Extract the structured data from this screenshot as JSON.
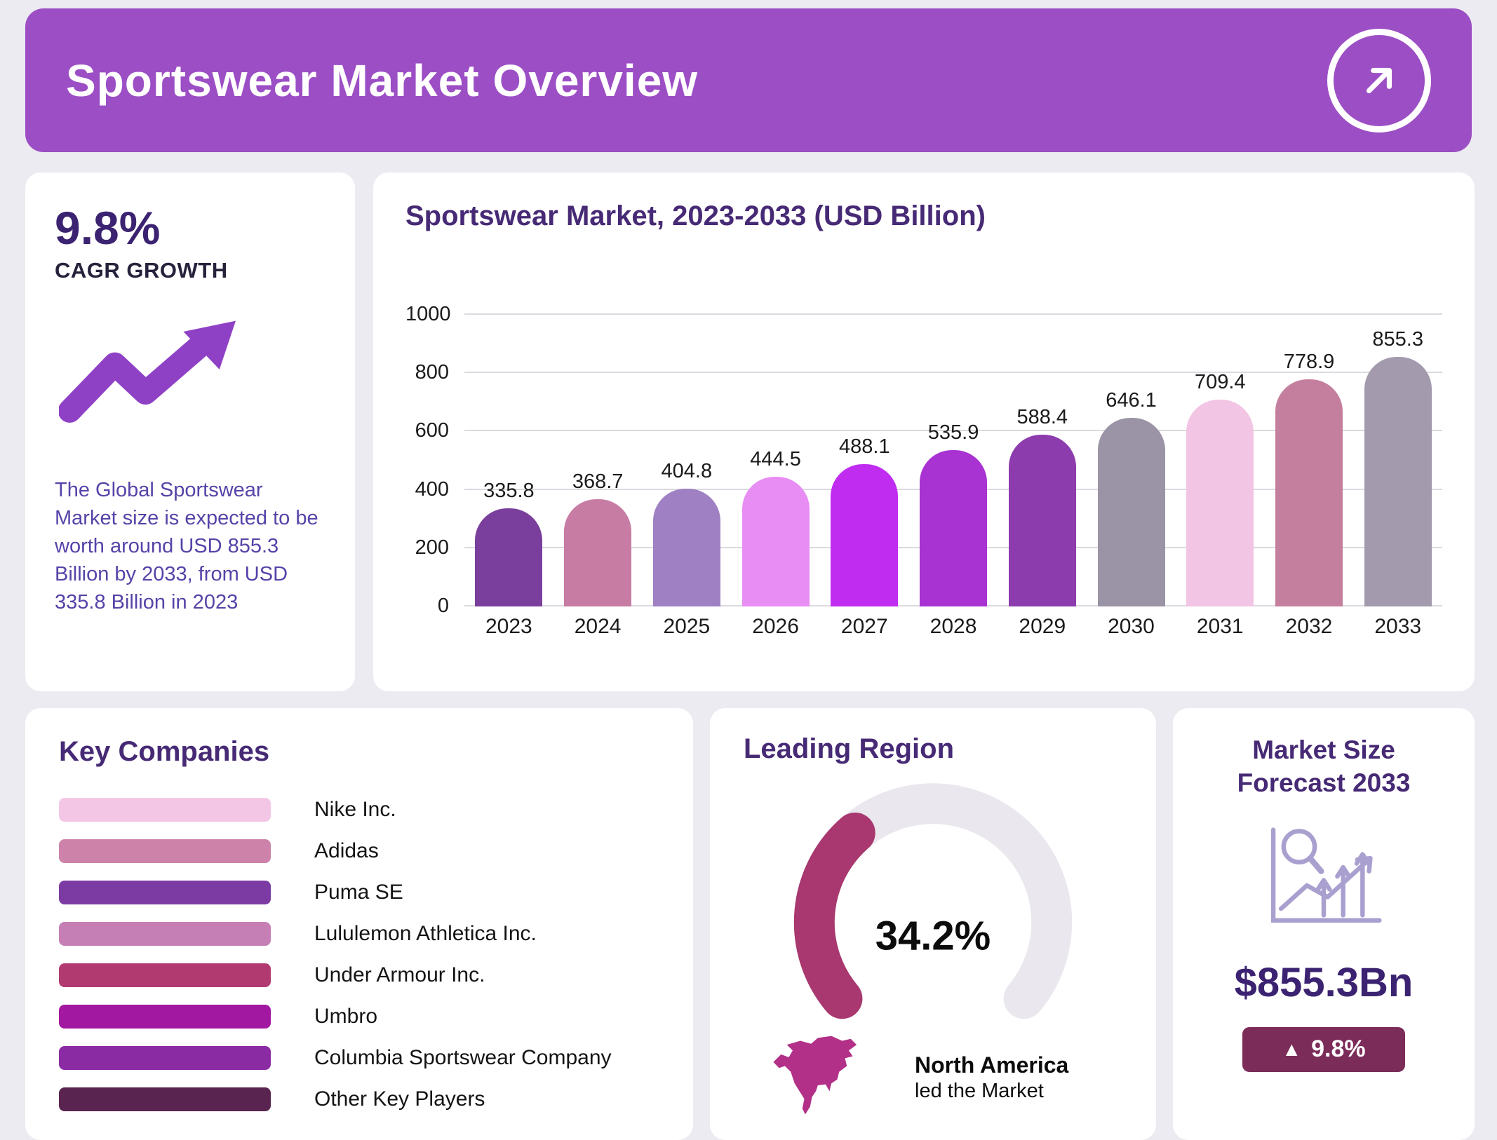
{
  "theme": {
    "background": "#ecebf1",
    "card_bg": "#ffffff",
    "heading_color": "#472a75"
  },
  "header": {
    "title": "Sportswear Market Overview",
    "bg_color": "#9c4ec5",
    "arrow_icon": "up-right-arrow-icon"
  },
  "stats": {
    "cagr_value": "9.8%",
    "cagr_label": "CAGR GROWTH",
    "trend_icon": "trend-up-arrow-icon",
    "trend_icon_color": "#8f41c6",
    "description": "The Global Sportswear Market size is expected to be worth around USD 855.3 Billion by 2033, from USD 335.8 Billion in 2023"
  },
  "chart_data": {
    "type": "bar",
    "title": "Sportswear Market, 2023-2033 (USD Billion)",
    "categories": [
      "2023",
      "2024",
      "2025",
      "2026",
      "2027",
      "2028",
      "2029",
      "2030",
      "2031",
      "2032",
      "2033"
    ],
    "values": [
      335.8,
      368.7,
      404.8,
      444.5,
      488.1,
      535.9,
      588.4,
      646.1,
      709.4,
      778.9,
      855.3
    ],
    "bar_colors": [
      "#7a3f9c",
      "#c77ca4",
      "#9f80c2",
      "#e78df3",
      "#c02df0",
      "#a832d2",
      "#8d3cae",
      "#9b93a6",
      "#f3c5e5",
      "#c57f9e",
      "#a49aae"
    ],
    "xlabel": "",
    "ylabel": "",
    "ylim": [
      0,
      1000
    ],
    "yticks": [
      0,
      200,
      400,
      600,
      800,
      1000
    ],
    "grid": true,
    "legend": false,
    "value_labels": true
  },
  "key_companies": {
    "title": "Key Companies",
    "items": [
      {
        "label": "Nike Inc.",
        "color": "#f4c6e6"
      },
      {
        "label": "Adidas",
        "color": "#cd82a9"
      },
      {
        "label": "Puma SE",
        "color": "#7c3ba2"
      },
      {
        "label": "Lululemon Athletica Inc.",
        "color": "#c57fb5"
      },
      {
        "label": "Under Armour Inc.",
        "color": "#b13a70"
      },
      {
        "label": "Umbro",
        "color": "#a318a0"
      },
      {
        "label": "Columbia Sportswear Company",
        "color": "#8b2ba4"
      },
      {
        "label": "Other Key Players",
        "color": "#5a2450"
      }
    ]
  },
  "leading_region": {
    "title": "Leading Region",
    "share_pct": 34.2,
    "share_label": "34.2%",
    "gauge_color": "#a8386f",
    "gauge_track_color": "#eae7ee",
    "map_icon": "north-america-map-icon",
    "map_color": "#b23087",
    "region_name": "North America",
    "region_caption": "led the Market"
  },
  "forecast": {
    "title": "Market Size Forecast 2033",
    "icon": "magnifier-growth-chart-icon",
    "icon_color": "#aaa0cf",
    "value": "$855.3Bn",
    "badge_arrow": "▲",
    "badge_label": "9.8%",
    "badge_bg": "#7c2c58"
  }
}
